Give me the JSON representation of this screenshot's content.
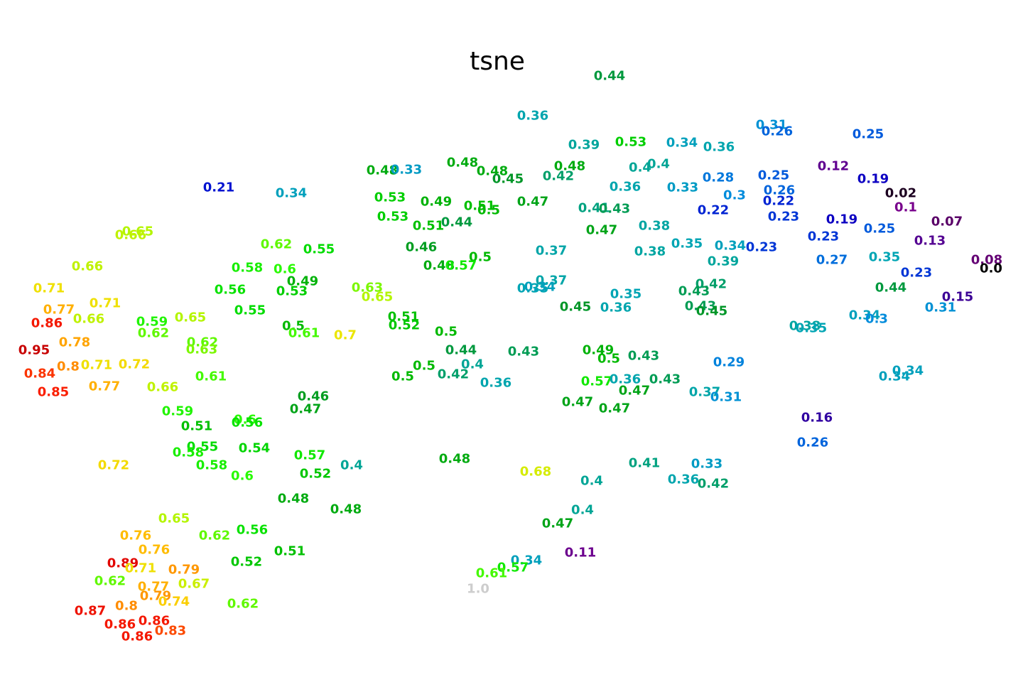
{
  "chart_data": {
    "type": "scatter",
    "title": "tsne",
    "axes_visible": false,
    "grid": false,
    "colormap": "nipy_spectral",
    "x_range": [
      0,
      1440
    ],
    "y_range": [
      0,
      960
    ],
    "points": [
      [
        858,
        107,
        "0.44"
      ],
      [
        750,
        163,
        "0.36"
      ],
      [
        1086,
        176,
        "0.31"
      ],
      [
        1094,
        185,
        "0.26"
      ],
      [
        1222,
        189,
        "0.25"
      ],
      [
        822,
        204,
        "0.39"
      ],
      [
        888,
        200,
        "0.53"
      ],
      [
        960,
        201,
        "0.34"
      ],
      [
        1012,
        207,
        "0.36"
      ],
      [
        651,
        229,
        "0.48"
      ],
      [
        802,
        234,
        "0.48"
      ],
      [
        1173,
        234,
        "0.12"
      ],
      [
        901,
        236,
        "0.4"
      ],
      [
        927,
        231,
        "0.4"
      ],
      [
        538,
        240,
        "0.48"
      ],
      [
        572,
        239,
        "0.33"
      ],
      [
        693,
        241,
        "0.48"
      ],
      [
        715,
        252,
        "0.45"
      ],
      [
        786,
        248,
        "0.42"
      ],
      [
        1011,
        250,
        "0.28"
      ],
      [
        1089,
        247,
        "0.25"
      ],
      [
        1229,
        252,
        "0.19"
      ],
      [
        308,
        264,
        "0.21"
      ],
      [
        410,
        272,
        "0.34"
      ],
      [
        880,
        263,
        "0.36"
      ],
      [
        961,
        264,
        "0.33"
      ],
      [
        1097,
        268,
        "0.26"
      ],
      [
        1268,
        272,
        "0.02"
      ],
      [
        549,
        278,
        "0.53"
      ],
      [
        614,
        284,
        "0.49"
      ],
      [
        750,
        284,
        "0.47"
      ],
      [
        1034,
        275,
        "0.3"
      ],
      [
        1096,
        283,
        "0.22"
      ],
      [
        675,
        290,
        "0.51"
      ],
      [
        688,
        296,
        "0.5"
      ],
      [
        836,
        293,
        "0.41"
      ],
      [
        865,
        294,
        "0.43"
      ],
      [
        1004,
        296,
        "0.22"
      ],
      [
        1275,
        292,
        "0.1"
      ],
      [
        553,
        305,
        "0.53"
      ],
      [
        1103,
        305,
        "0.23"
      ],
      [
        1185,
        309,
        "0.19"
      ],
      [
        1333,
        312,
        "0.07"
      ],
      [
        603,
        318,
        "0.51"
      ],
      [
        643,
        313,
        "0.44"
      ],
      [
        847,
        324,
        "0.47"
      ],
      [
        921,
        318,
        "0.38"
      ],
      [
        1238,
        322,
        "0.25"
      ],
      [
        194,
        326,
        "0.65"
      ],
      [
        184,
        331,
        "0.66"
      ],
      [
        1159,
        333,
        "0.23"
      ],
      [
        1309,
        339,
        "0.13"
      ],
      [
        389,
        344,
        "0.62"
      ],
      [
        449,
        351,
        "0.55"
      ],
      [
        593,
        348,
        "0.46"
      ],
      [
        967,
        343,
        "0.35"
      ],
      [
        1028,
        346,
        "0.34"
      ],
      [
        1072,
        348,
        "0.23"
      ],
      [
        676,
        362,
        "0.5"
      ],
      [
        776,
        353,
        "0.37"
      ],
      [
        915,
        354,
        "0.38"
      ],
      [
        1245,
        362,
        "0.35"
      ],
      [
        1389,
        366,
        "0.08"
      ],
      [
        618,
        374,
        "0.48"
      ],
      [
        649,
        374,
        "0.57"
      ],
      [
        1018,
        368,
        "0.39"
      ],
      [
        1171,
        366,
        "0.27"
      ],
      [
        123,
        375,
        "0.66"
      ],
      [
        348,
        377,
        "0.58"
      ],
      [
        401,
        379,
        "0.6"
      ],
      [
        1395,
        378,
        "0.0"
      ],
      [
        1290,
        384,
        "0.23"
      ],
      [
        69,
        406,
        "0.71"
      ],
      [
        426,
        396,
        "0.49"
      ],
      [
        776,
        395,
        "0.37"
      ],
      [
        1001,
        400,
        "0.42"
      ],
      [
        1254,
        405,
        "0.44"
      ],
      [
        324,
        408,
        "0.56"
      ],
      [
        411,
        410,
        "0.53"
      ],
      [
        517,
        405,
        "0.63"
      ],
      [
        750,
        406,
        "0.35"
      ],
      [
        760,
        404,
        "0.34"
      ],
      [
        977,
        410,
        "0.43"
      ],
      [
        531,
        418,
        "0.65"
      ],
      [
        1348,
        418,
        "0.15"
      ],
      [
        148,
        427,
        "0.71"
      ],
      [
        881,
        414,
        "0.35"
      ],
      [
        83,
        436,
        "0.77"
      ],
      [
        352,
        437,
        "0.55"
      ],
      [
        810,
        432,
        "0.45"
      ],
      [
        867,
        433,
        "0.36"
      ],
      [
        986,
        431,
        "0.43"
      ],
      [
        1002,
        438,
        "0.45"
      ],
      [
        1324,
        433,
        "0.31"
      ],
      [
        125,
        449,
        "0.66"
      ],
      [
        268,
        447,
        "0.65"
      ],
      [
        568,
        446,
        "0.51"
      ],
      [
        1217,
        444,
        "0.34"
      ],
      [
        1234,
        449,
        "0.3"
      ],
      [
        66,
        455,
        "0.86"
      ],
      [
        214,
        453,
        "0.59"
      ],
      [
        569,
        458,
        "0.52"
      ],
      [
        413,
        459,
        "0.5"
      ],
      [
        1133,
        459,
        "0.38"
      ],
      [
        1142,
        462,
        "0.35"
      ],
      [
        216,
        469,
        "0.62"
      ],
      [
        428,
        469,
        "0.61"
      ],
      [
        486,
        472,
        "0.7"
      ],
      [
        628,
        467,
        "0.5"
      ],
      [
        105,
        482,
        "0.78"
      ],
      [
        285,
        482,
        "0.62"
      ],
      [
        284,
        492,
        "0.63"
      ],
      [
        48,
        493,
        "0.95"
      ],
      [
        649,
        493,
        "0.44"
      ],
      [
        737,
        495,
        "0.43"
      ],
      [
        842,
        493,
        "0.49"
      ],
      [
        906,
        501,
        "0.43"
      ],
      [
        857,
        505,
        "0.5"
      ],
      [
        1026,
        510,
        "0.29"
      ],
      [
        96,
        516,
        "0.8"
      ],
      [
        136,
        514,
        "0.71"
      ],
      [
        189,
        513,
        "0.72"
      ],
      [
        597,
        515,
        "0.5"
      ],
      [
        665,
        513,
        "0.4"
      ],
      [
        1278,
        522,
        "0.34"
      ],
      [
        56,
        526,
        "0.84"
      ],
      [
        297,
        530,
        "0.61"
      ],
      [
        638,
        527,
        "0.42"
      ],
      [
        1259,
        530,
        "0.34"
      ],
      [
        567,
        530,
        "0.5"
      ],
      [
        698,
        539,
        "0.36"
      ],
      [
        840,
        537,
        "0.57"
      ],
      [
        880,
        534,
        "0.36"
      ],
      [
        936,
        534,
        "0.43"
      ],
      [
        75,
        552,
        "0.85"
      ],
      [
        147,
        544,
        "0.77"
      ],
      [
        229,
        545,
        "0.66"
      ],
      [
        441,
        558,
        "0.46"
      ],
      [
        893,
        550,
        "0.47"
      ],
      [
        992,
        552,
        "0.37"
      ],
      [
        1022,
        559,
        "0.31"
      ],
      [
        430,
        576,
        "0.47"
      ],
      [
        813,
        566,
        "0.47"
      ],
      [
        865,
        575,
        "0.47"
      ],
      [
        250,
        579,
        "0.59"
      ],
      [
        1150,
        588,
        "0.16"
      ],
      [
        345,
        591,
        "0.6"
      ],
      [
        277,
        600,
        "0.51"
      ],
      [
        348,
        595,
        "0.56"
      ],
      [
        1144,
        623,
        "0.26"
      ],
      [
        285,
        629,
        "0.55"
      ],
      [
        358,
        631,
        "0.54"
      ],
      [
        265,
        637,
        "0.58"
      ],
      [
        436,
        641,
        "0.57"
      ],
      [
        640,
        646,
        "0.48"
      ],
      [
        160,
        655,
        "0.72"
      ],
      [
        298,
        655,
        "0.58"
      ],
      [
        495,
        655,
        "0.4"
      ],
      [
        907,
        652,
        "0.41"
      ],
      [
        995,
        653,
        "0.33"
      ],
      [
        341,
        670,
        "0.6"
      ],
      [
        444,
        667,
        "0.52"
      ],
      [
        754,
        664,
        "0.68"
      ],
      [
        833,
        677,
        "0.4"
      ],
      [
        962,
        675,
        "0.36"
      ],
      [
        1004,
        681,
        "0.42"
      ],
      [
        413,
        702,
        "0.48"
      ],
      [
        487,
        717,
        "0.48"
      ],
      [
        820,
        718,
        "0.4"
      ],
      [
        245,
        730,
        "0.65"
      ],
      [
        785,
        737,
        "0.47"
      ],
      [
        191,
        754,
        "0.76"
      ],
      [
        302,
        754,
        "0.62"
      ],
      [
        355,
        746,
        "0.56"
      ],
      [
        217,
        774,
        "0.76"
      ],
      [
        408,
        776,
        "0.51"
      ],
      [
        817,
        778,
        "0.11"
      ],
      [
        741,
        789,
        "0.34"
      ],
      [
        173,
        793,
        "0.89"
      ],
      [
        198,
        800,
        "0.71"
      ],
      [
        259,
        802,
        "0.79"
      ],
      [
        347,
        791,
        "0.52"
      ],
      [
        722,
        799,
        "0.57"
      ],
      [
        692,
        807,
        "0.61"
      ],
      [
        155,
        818,
        "0.62"
      ],
      [
        216,
        826,
        "0.77"
      ],
      [
        273,
        822,
        "0.67"
      ],
      [
        673,
        829,
        "1.0"
      ],
      [
        219,
        839,
        "0.79"
      ],
      [
        245,
        847,
        "0.74"
      ],
      [
        342,
        850,
        "0.62"
      ],
      [
        178,
        853,
        "0.8"
      ],
      [
        127,
        860,
        "0.87"
      ],
      [
        169,
        879,
        "0.86"
      ],
      [
        217,
        874,
        "0.86"
      ],
      [
        240,
        888,
        "0.83"
      ],
      [
        193,
        896,
        "0.86"
      ]
    ]
  }
}
